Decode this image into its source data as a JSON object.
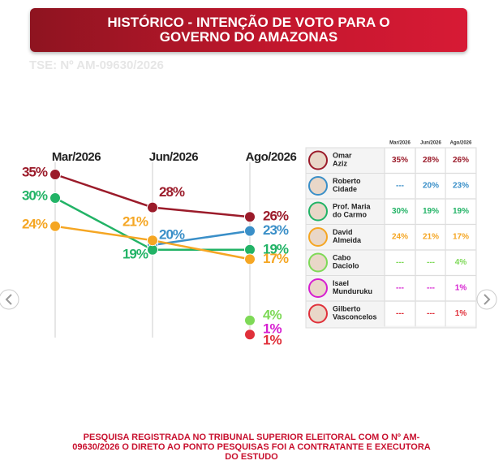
{
  "title": "HISTÓRICO - INTENÇÃO DE VOTO PARA O GOVERNO DO AMAZONAS",
  "subtitle": "TSE: Nº AM-09630/2026",
  "footer": "PESQUISA REGISTRADA NO TRIBUNAL SUPERIOR ELEITORAL COM O Nº AM-09630/2026 O DIRETO AO PONTO PESQUISAS FOI A CONTRATANTE E EXECUTORA DO ESTUDO",
  "chart_data": {
    "type": "line",
    "categories": [
      "Mar/2026",
      "Jun/2026",
      "Ago/2026"
    ],
    "ylim": [
      0,
      37
    ],
    "series": [
      {
        "name": "Omar Aziz",
        "color": "#9b1b2a",
        "values": [
          35,
          28,
          26
        ],
        "value_labels": [
          "35%",
          "28%",
          "26%"
        ]
      },
      {
        "name": "Roberto Cidade",
        "color": "#3a8fc8",
        "values": [
          null,
          20,
          23
        ],
        "value_labels": [
          "---",
          "20%",
          "23%"
        ]
      },
      {
        "name": "Prof. Maria do Carmo",
        "color": "#22b366",
        "values": [
          30,
          19,
          19
        ],
        "value_labels": [
          "30%",
          "19%",
          "19%"
        ]
      },
      {
        "name": "David Almeida",
        "color": "#f5a623",
        "values": [
          24,
          21,
          17
        ],
        "value_labels": [
          "24%",
          "21%",
          "17%"
        ]
      },
      {
        "name": "Cabo Daciolo",
        "color": "#7ed957",
        "values": [
          null,
          null,
          4
        ],
        "value_labels": [
          "---",
          "---",
          "4%"
        ]
      },
      {
        "name": "Isael Munduruku",
        "color": "#d61fd0",
        "values": [
          null,
          null,
          1
        ],
        "value_labels": [
          "---",
          "---",
          "1%"
        ]
      },
      {
        "name": "Gilberto Vasconcelos",
        "color": "#e0303a",
        "values": [
          null,
          null,
          1
        ],
        "value_labels": [
          "---",
          "---",
          "1%"
        ]
      }
    ]
  }
}
